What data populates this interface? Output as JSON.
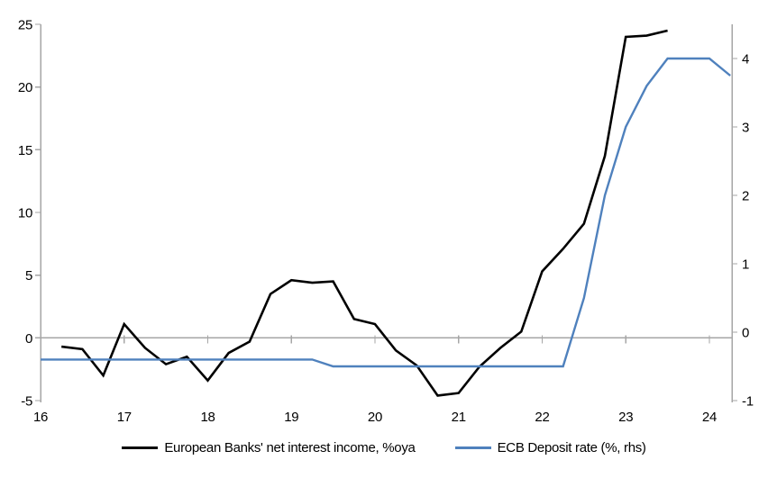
{
  "chart_data": {
    "type": "line",
    "title": "",
    "xlabel": "",
    "ylabel_left": "",
    "ylabel_right": "",
    "grid": "zero-line-only",
    "legend_position": "bottom-center",
    "x_axis": {
      "min": 16,
      "max": 24.27,
      "ticks": [
        16,
        17,
        18,
        19,
        20,
        21,
        22,
        23,
        24
      ]
    },
    "left_axis": {
      "min": -5,
      "max": 25,
      "ticks": [
        -5,
        0,
        5,
        10,
        15,
        20,
        25
      ]
    },
    "right_axis": {
      "min": -1,
      "max": 4.5,
      "ticks": [
        -1,
        0,
        1,
        2,
        3,
        4
      ]
    },
    "series": [
      {
        "name": "European Banks' net interest income, %oya",
        "axis": "left",
        "color": "#000000",
        "stroke_width": 2.6,
        "x": [
          16.25,
          16.5,
          16.75,
          17,
          17.25,
          17.5,
          17.75,
          18,
          18.25,
          18.5,
          18.75,
          19,
          19.25,
          19.5,
          19.75,
          20,
          20.25,
          20.5,
          20.75,
          21,
          21.25,
          21.5,
          21.75,
          22,
          22.25,
          22.5,
          22.75,
          23,
          23.25,
          23.5
        ],
        "y": [
          -0.7,
          -0.9,
          -3.0,
          1.1,
          -0.8,
          -2.1,
          -1.5,
          -3.4,
          -1.2,
          -0.3,
          3.5,
          4.6,
          4.4,
          4.5,
          1.5,
          1.1,
          -1.0,
          -2.2,
          -4.6,
          -4.4,
          -2.3,
          -0.8,
          0.5,
          5.3,
          7.1,
          9.1,
          14.5,
          24.0,
          24.1,
          24.5
        ]
      },
      {
        "name": "ECB Deposit rate (%, rhs)",
        "axis": "right",
        "color": "#4f81bd",
        "stroke_width": 2.4,
        "x": [
          16,
          16.25,
          16.5,
          16.75,
          17,
          17.25,
          17.5,
          17.75,
          18,
          18.25,
          18.5,
          18.75,
          19,
          19.25,
          19.5,
          19.75,
          20,
          20.25,
          20.5,
          20.75,
          21,
          21.25,
          21.5,
          21.75,
          22,
          22.25,
          22.5,
          22.75,
          23,
          23.25,
          23.5,
          23.75,
          24,
          24.25
        ],
        "y": [
          -0.4,
          -0.4,
          -0.4,
          -0.4,
          -0.4,
          -0.4,
          -0.4,
          -0.4,
          -0.4,
          -0.4,
          -0.4,
          -0.4,
          -0.4,
          -0.4,
          -0.5,
          -0.5,
          -0.5,
          -0.5,
          -0.5,
          -0.5,
          -0.5,
          -0.5,
          -0.5,
          -0.5,
          -0.5,
          -0.5,
          0.5,
          2.0,
          3.0,
          3.6,
          4.0,
          4.0,
          4.0,
          3.75
        ]
      }
    ],
    "colors": {
      "axis": "#a6a6a6",
      "zero_line": "#a6a6a6",
      "text": "#000000"
    }
  },
  "legend": {
    "items": [
      {
        "label": "European Banks' net interest income, %oya"
      },
      {
        "label": "ECB Deposit rate (%, rhs)"
      }
    ]
  }
}
